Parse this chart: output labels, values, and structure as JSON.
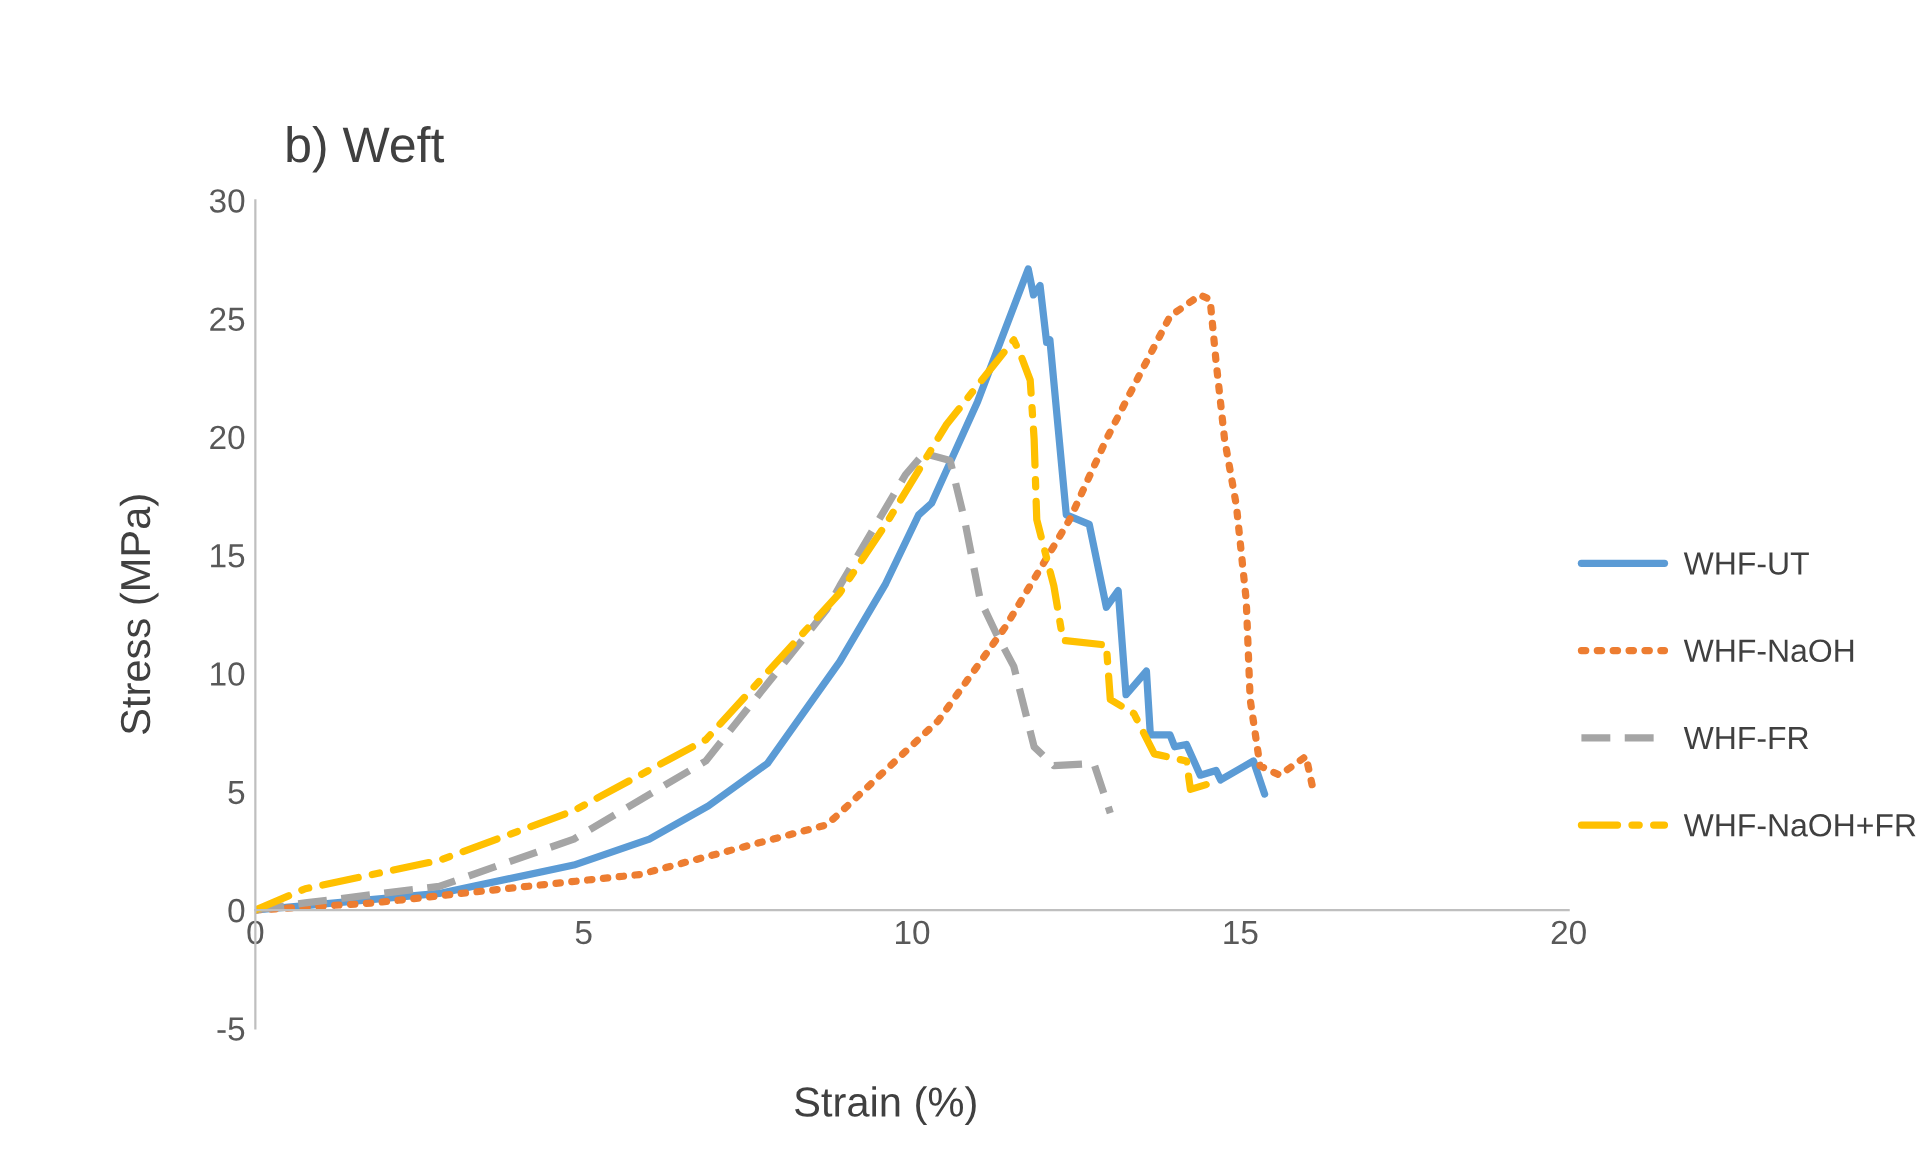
{
  "chart_data": {
    "type": "line",
    "title": "b) Weft",
    "xlabel": "Strain (%)",
    "ylabel": "Stress (MPa)",
    "xlim": [
      0,
      20
    ],
    "xticks": [
      0,
      5,
      10,
      15,
      20
    ],
    "ylim": [
      -5,
      30
    ],
    "yticks": [
      -5,
      0,
      5,
      10,
      15,
      20,
      25,
      30
    ],
    "grid": false,
    "legend": "right",
    "marker": "none",
    "series": [
      {
        "name": "WHF-UT",
        "color": "#5b9bd5",
        "line_style": "solid",
        "x": [
          0,
          0.8,
          2.8,
          4.85,
          6,
          6.9,
          7.8,
          8.9,
          9.6,
          10.1,
          10.3,
          11,
          11.77,
          11.85,
          11.95,
          12.05,
          12.1,
          12.35,
          12.7,
          12.96,
          13.14,
          13.26,
          13.57,
          13.63,
          13.93,
          14.0,
          14.18,
          14.39,
          14.63,
          14.7,
          15.2,
          15.37
        ],
        "values": [
          0,
          0.2,
          0.7,
          1.9,
          3.0,
          4.4,
          6.2,
          10.5,
          13.8,
          16.7,
          17.2,
          21.5,
          27.1,
          26.0,
          26.4,
          24.0,
          24.1,
          16.7,
          16.3,
          12.8,
          13.5,
          9.1,
          10.1,
          7.4,
          7.4,
          6.9,
          7.0,
          5.7,
          5.9,
          5.5,
          6.3,
          4.9
        ]
      },
      {
        "name": "WHF-NaOH",
        "color": "#ed7d31",
        "line_style": "dotted",
        "x": [
          0,
          1.8,
          3.8,
          5.85,
          8.7,
          8.9,
          10.4,
          11.43,
          12.4,
          12.96,
          13.48,
          13.93,
          14.39,
          14.54,
          14.63,
          14.76,
          14.94,
          15.09,
          15.15,
          15.3,
          15.6,
          16.0,
          16.1
        ],
        "values": [
          0,
          0.3,
          0.9,
          1.5,
          3.6,
          4.1,
          8.0,
          12.0,
          16.5,
          19.9,
          22.7,
          25.1,
          26.0,
          25.8,
          23.2,
          19.9,
          17.1,
          13.1,
          8.9,
          6.1,
          5.7,
          6.5,
          5.2
        ]
      },
      {
        "name": "WHF-FR",
        "color": "#a5a5a5",
        "line_style": "dashed",
        "x": [
          0,
          0.76,
          2.8,
          4.85,
          6.86,
          8.7,
          8.9,
          9.9,
          10.18,
          10.58,
          10.8,
          11.04,
          11.28,
          11.55,
          11.86,
          12.16,
          12.77,
          13.02
        ],
        "values": [
          0,
          0.3,
          1.0,
          3.0,
          6.3,
          12.7,
          13.7,
          18.4,
          19.3,
          19.0,
          16.5,
          13.1,
          11.7,
          10.3,
          6.9,
          6.1,
          6.2,
          4.1
        ]
      },
      {
        "name": "WHF-NaOH+FR",
        "color": "#ffc000",
        "line_style": "dashdot",
        "x": [
          0,
          0.76,
          2.8,
          4.85,
          6.86,
          8.9,
          9.6,
          10.52,
          11.55,
          11.65,
          11.8,
          11.86,
          11.9,
          12.16,
          12.3,
          12.96,
          13.02,
          13.38,
          13.69,
          14.18,
          14.24,
          14.48
        ],
        "values": [
          0,
          0.9,
          2.1,
          4.2,
          7.2,
          13.4,
          16.3,
          20.5,
          24.1,
          23.5,
          22.4,
          19.9,
          16.5,
          13.7,
          11.4,
          11.2,
          8.9,
          8.3,
          6.6,
          6.3,
          5.1,
          5.3
        ]
      }
    ]
  }
}
